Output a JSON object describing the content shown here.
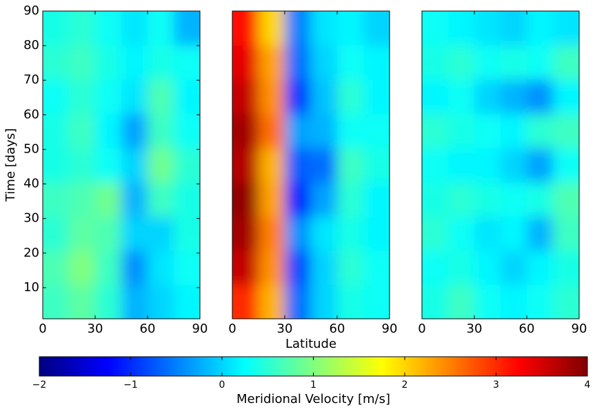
{
  "chart_data": [
    {
      "type": "heatmap",
      "ylabel": "Time [days]",
      "xlim": [
        0,
        90
      ],
      "ylim": [
        1,
        90
      ],
      "xticks": [
        0,
        30,
        60,
        90
      ],
      "yticks": [
        10,
        20,
        30,
        40,
        50,
        60,
        70,
        80,
        90
      ],
      "z": [
        [
          0.6,
          0.8,
          0.5,
          -0.2,
          0.0,
          0.2
        ],
        [
          0.7,
          1.0,
          0.6,
          -0.4,
          0.1,
          0.3
        ],
        [
          0.5,
          0.8,
          0.7,
          0.0,
          0.0,
          0.4
        ],
        [
          0.6,
          0.7,
          0.9,
          -0.2,
          0.6,
          0.4
        ],
        [
          0.4,
          0.5,
          0.3,
          0.0,
          0.9,
          0.5
        ],
        [
          0.4,
          0.6,
          0.2,
          -0.3,
          0.6,
          0.3
        ],
        [
          0.3,
          0.5,
          0.3,
          0.1,
          0.7,
          0.2
        ],
        [
          0.5,
          0.6,
          0.4,
          0.2,
          0.4,
          0.3
        ],
        [
          0.4,
          0.5,
          0.3,
          0.1,
          0.3,
          -0.2
        ]
      ]
    },
    {
      "type": "heatmap",
      "xlabel": "Latitude",
      "xlim": [
        0,
        90
      ],
      "ylim": [
        1,
        90
      ],
      "xticks": [
        0,
        30,
        60,
        90
      ],
      "z": [
        [
          3.0,
          2.2,
          -0.6,
          0.0,
          0.4,
          0.3
        ],
        [
          3.6,
          2.4,
          -0.8,
          0.0,
          0.5,
          0.3
        ],
        [
          3.8,
          2.5,
          -0.4,
          0.1,
          0.4,
          0.2
        ],
        [
          3.9,
          2.3,
          -1.0,
          -0.3,
          0.5,
          0.2
        ],
        [
          3.7,
          2.2,
          -0.7,
          -0.6,
          0.6,
          0.4
        ],
        [
          3.8,
          2.6,
          -0.3,
          -0.2,
          0.3,
          0.3
        ],
        [
          3.6,
          2.4,
          -0.9,
          -0.1,
          0.5,
          0.2
        ],
        [
          3.4,
          2.3,
          -0.6,
          0.0,
          0.3,
          0.2
        ],
        [
          3.2,
          2.0,
          -0.5,
          0.1,
          0.2,
          0.0
        ]
      ]
    },
    {
      "type": "heatmap",
      "xlim": [
        0,
        90
      ],
      "ylim": [
        1,
        90
      ],
      "xticks": [
        0,
        30,
        60,
        90
      ],
      "z": [
        [
          0.4,
          0.6,
          0.3,
          0.2,
          0.3,
          0.5
        ],
        [
          0.3,
          0.4,
          0.2,
          0.0,
          0.2,
          0.4
        ],
        [
          0.5,
          0.3,
          0.1,
          0.2,
          -0.2,
          0.6
        ],
        [
          0.4,
          0.5,
          0.4,
          0.3,
          0.4,
          0.7
        ],
        [
          0.3,
          0.2,
          0.2,
          0.0,
          -0.3,
          0.3
        ],
        [
          0.5,
          0.4,
          0.3,
          0.2,
          0.5,
          0.6
        ],
        [
          0.2,
          0.3,
          0.0,
          -0.2,
          -0.4,
          0.2
        ],
        [
          0.4,
          0.5,
          0.3,
          0.4,
          0.3,
          0.6
        ],
        [
          0.3,
          0.2,
          0.1,
          0.0,
          0.2,
          0.1
        ]
      ]
    },
    {
      "type": "colorbar",
      "colormap": "jet",
      "label": "Meridional Velocity [m/s]",
      "clim": [
        -2,
        4
      ],
      "ticks": [
        {
          "value": -2,
          "label": "−2"
        },
        {
          "value": -1,
          "label": "−1"
        },
        0,
        1,
        2,
        3,
        4
      ]
    }
  ]
}
